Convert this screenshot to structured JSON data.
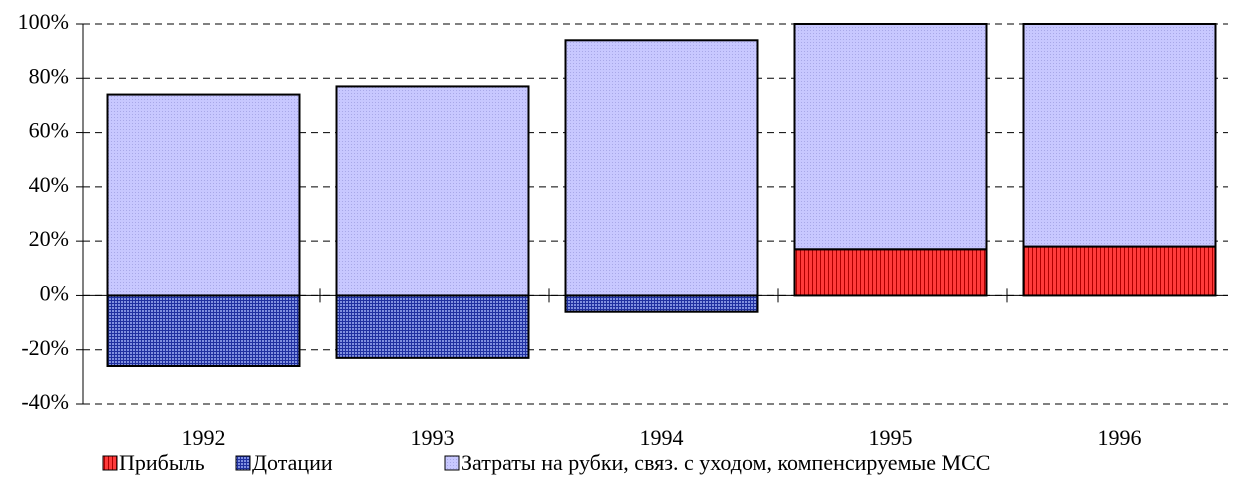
{
  "chart_data": {
    "type": "stacked_bar",
    "categories": [
      "1992",
      "1993",
      "1994",
      "1995",
      "1996"
    ],
    "series": [
      {
        "name": "Прибыль",
        "color": "#ff3b3b",
        "values": [
          0,
          0,
          0,
          17,
          18
        ]
      },
      {
        "name": "Дотации",
        "color": "#4a5cc4",
        "values": [
          -26,
          -23,
          -6,
          0,
          0
        ]
      },
      {
        "name": "Затраты на рубки, связ. с уходом, компенсируемые МСС",
        "color": "#c4c4ff",
        "values": [
          74,
          77,
          94,
          83,
          82
        ]
      }
    ],
    "ylim": [
      -40,
      100
    ],
    "yticks": [
      {
        "value": -40,
        "label": "-40%"
      },
      {
        "value": -20,
        "label": "-20%"
      },
      {
        "value": 0,
        "label": "0%"
      },
      {
        "value": 20,
        "label": "20%"
      },
      {
        "value": 40,
        "label": "40%"
      },
      {
        "value": 60,
        "label": "60%"
      },
      {
        "value": 80,
        "label": "80%"
      },
      {
        "value": 100,
        "label": "100%"
      }
    ],
    "grid": true,
    "legend": "bottom"
  }
}
